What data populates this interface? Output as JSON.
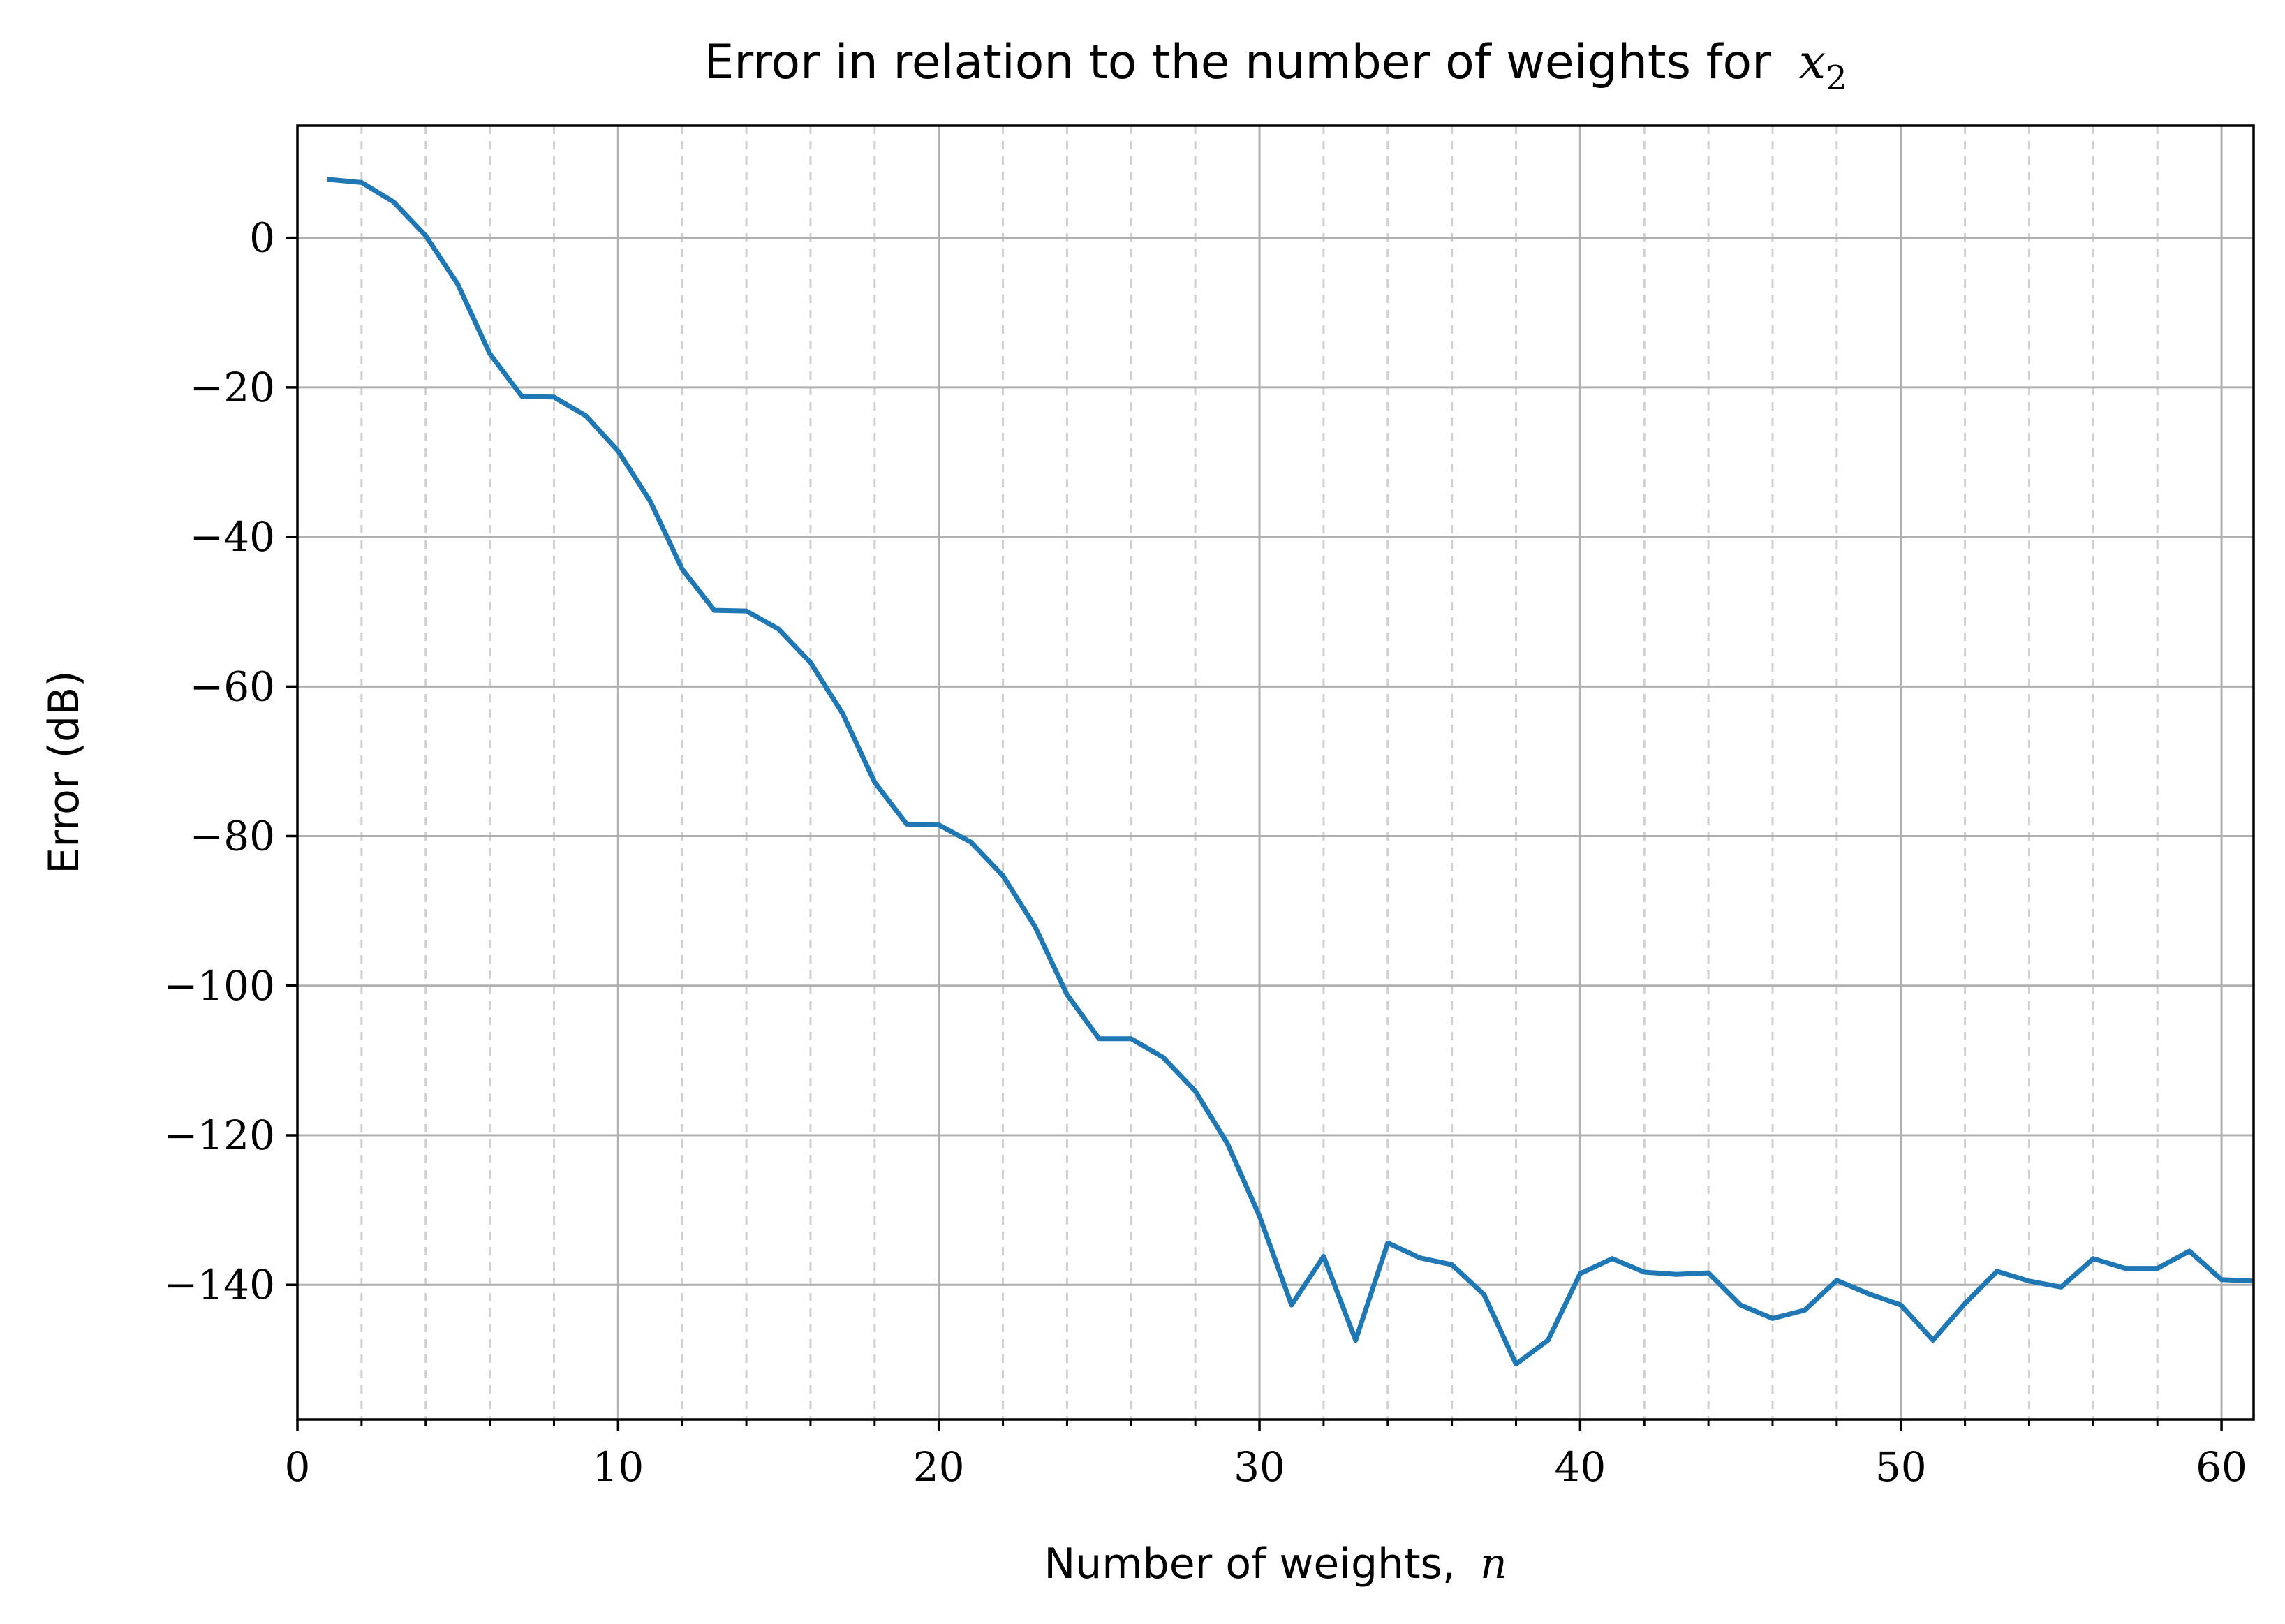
{
  "chart_data": {
    "type": "line",
    "title": "Error in relation to the number of weights for",
    "title_math": "x",
    "title_math_sub": "2",
    "xlabel": "Number of weights,",
    "xlabel_math": "n",
    "ylabel": "Error (dB)",
    "xlim": [
      0,
      61
    ],
    "ylim": [
      -158,
      15
    ],
    "xticks": [
      0,
      10,
      20,
      30,
      40,
      50,
      60
    ],
    "xtick_labels": [
      "0",
      "10",
      "20",
      "30",
      "40",
      "50",
      "60"
    ],
    "yticks": [
      0,
      -20,
      -40,
      -60,
      -80,
      -100,
      -120,
      -140
    ],
    "ytick_labels": [
      "0",
      "−20",
      "−40",
      "−60",
      "−80",
      "−100",
      "−120",
      "−140"
    ],
    "grid": true,
    "grid_major_x_step": 10,
    "grid_minor_x_step": 2,
    "line_color": "#1f77b4",
    "grid_color": "#b0b0b0",
    "x": [
      1,
      2,
      3,
      4,
      5,
      6,
      7,
      8,
      9,
      10,
      11,
      12,
      13,
      14,
      15,
      16,
      17,
      18,
      19,
      20,
      21,
      22,
      23,
      24,
      25,
      26,
      27,
      28,
      29,
      30,
      31,
      32,
      33,
      34,
      35,
      36,
      37,
      38,
      39,
      40,
      41,
      42,
      43,
      44,
      45,
      46,
      47,
      48,
      49,
      50,
      51,
      52,
      53,
      54,
      55,
      56,
      57,
      58,
      59,
      60,
      61
    ],
    "y": [
      7.8,
      7.4,
      4.8,
      0.3,
      -6.2,
      -15.5,
      -21.2,
      -21.3,
      -23.8,
      -28.5,
      -35.2,
      -44.3,
      -49.8,
      -49.9,
      -52.3,
      -56.8,
      -63.6,
      -72.8,
      -78.4,
      -78.5,
      -80.8,
      -85.3,
      -92.1,
      -101.2,
      -107.1,
      -107.1,
      -109.6,
      -114.1,
      -121.1,
      -130.8,
      -142.7,
      -136.2,
      -147.4,
      -134.4,
      -136.4,
      -137.3,
      -141.3,
      -150.6,
      -147.4,
      -138.5,
      -136.5,
      -138.3,
      -138.6,
      -138.4,
      -142.7,
      -144.5,
      -143.4,
      -139.4,
      -141.2,
      -142.7,
      -147.4,
      -142.5,
      -138.2,
      -139.5,
      -140.3,
      -136.5,
      -137.8,
      -137.8,
      -135.5,
      -139.3,
      -139.5
    ],
    "series": [
      {
        "values_ref": "y"
      }
    ]
  }
}
